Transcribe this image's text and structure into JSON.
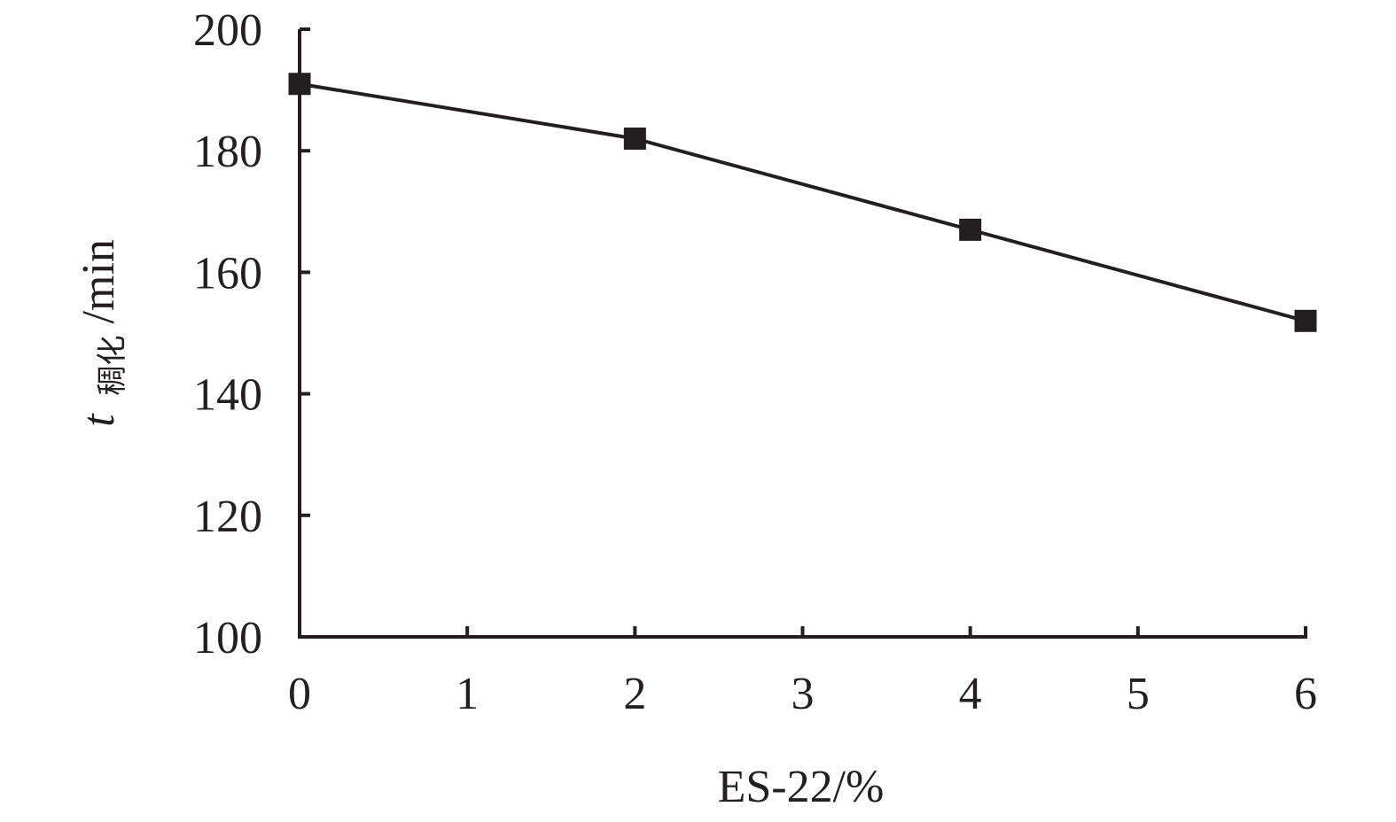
{
  "chart_data": {
    "type": "line",
    "title": "",
    "xlabel": "ES-22/%",
    "ylabel": {
      "var": "t",
      "subscript": "稠化",
      "unit": "/min"
    },
    "xlim": [
      0,
      6
    ],
    "ylim": [
      100,
      200
    ],
    "xticks": [
      0,
      1,
      2,
      3,
      4,
      5,
      6
    ],
    "yticks": [
      100,
      120,
      140,
      160,
      180,
      200
    ],
    "grid": false,
    "legend": "none",
    "series": [
      {
        "x": [
          0,
          2,
          4,
          6
        ],
        "y": [
          191,
          182,
          167,
          152
        ],
        "marker": "square",
        "color": "#231f20"
      }
    ]
  }
}
